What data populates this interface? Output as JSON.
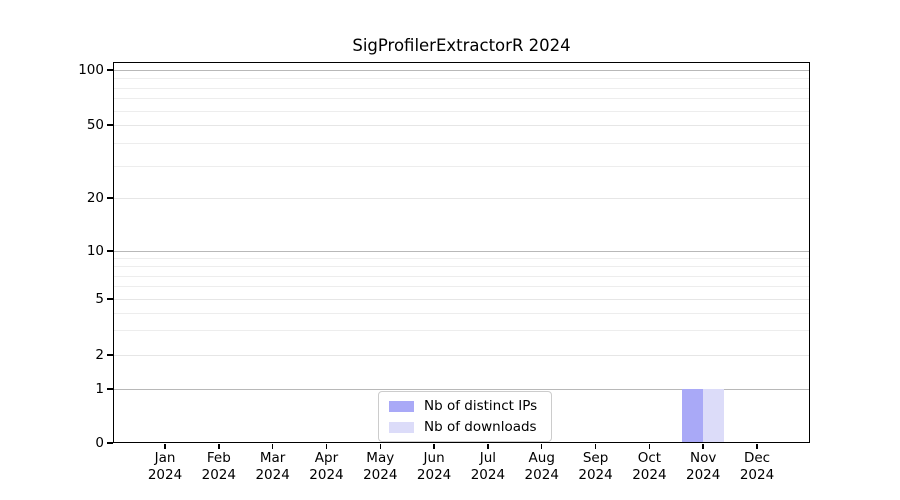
{
  "chart_data": {
    "type": "bar",
    "title": "SigProfilerExtractorR 2024",
    "categories": [
      "Jan 2024",
      "Feb 2024",
      "Mar 2024",
      "Apr 2024",
      "May 2024",
      "Jun 2024",
      "Jul 2024",
      "Aug 2024",
      "Sep 2024",
      "Oct 2024",
      "Nov 2024",
      "Dec 2024"
    ],
    "series": [
      {
        "name": "Nb of distinct IPs",
        "color": "#a9a9f7",
        "values": [
          0,
          0,
          0,
          0,
          0,
          0,
          0,
          0,
          0,
          0,
          1,
          0
        ]
      },
      {
        "name": "Nb of downloads",
        "color": "#dcdcf9",
        "values": [
          0,
          0,
          0,
          0,
          0,
          0,
          0,
          0,
          0,
          0,
          1,
          0
        ]
      }
    ],
    "xlabel": "",
    "ylabel": "",
    "yscale": "symlog",
    "ylim": [
      0,
      110
    ],
    "yticks": [
      0,
      1,
      2,
      5,
      10,
      20,
      50,
      100
    ],
    "grid": true,
    "legend_position": "lower center"
  },
  "colors": {
    "background": "#ffffff",
    "spine": "#000000",
    "grid_major": "#b8b8b8",
    "grid_mid": "#e6e6e6",
    "grid_minor": "#ededed",
    "text": "#000000"
  }
}
